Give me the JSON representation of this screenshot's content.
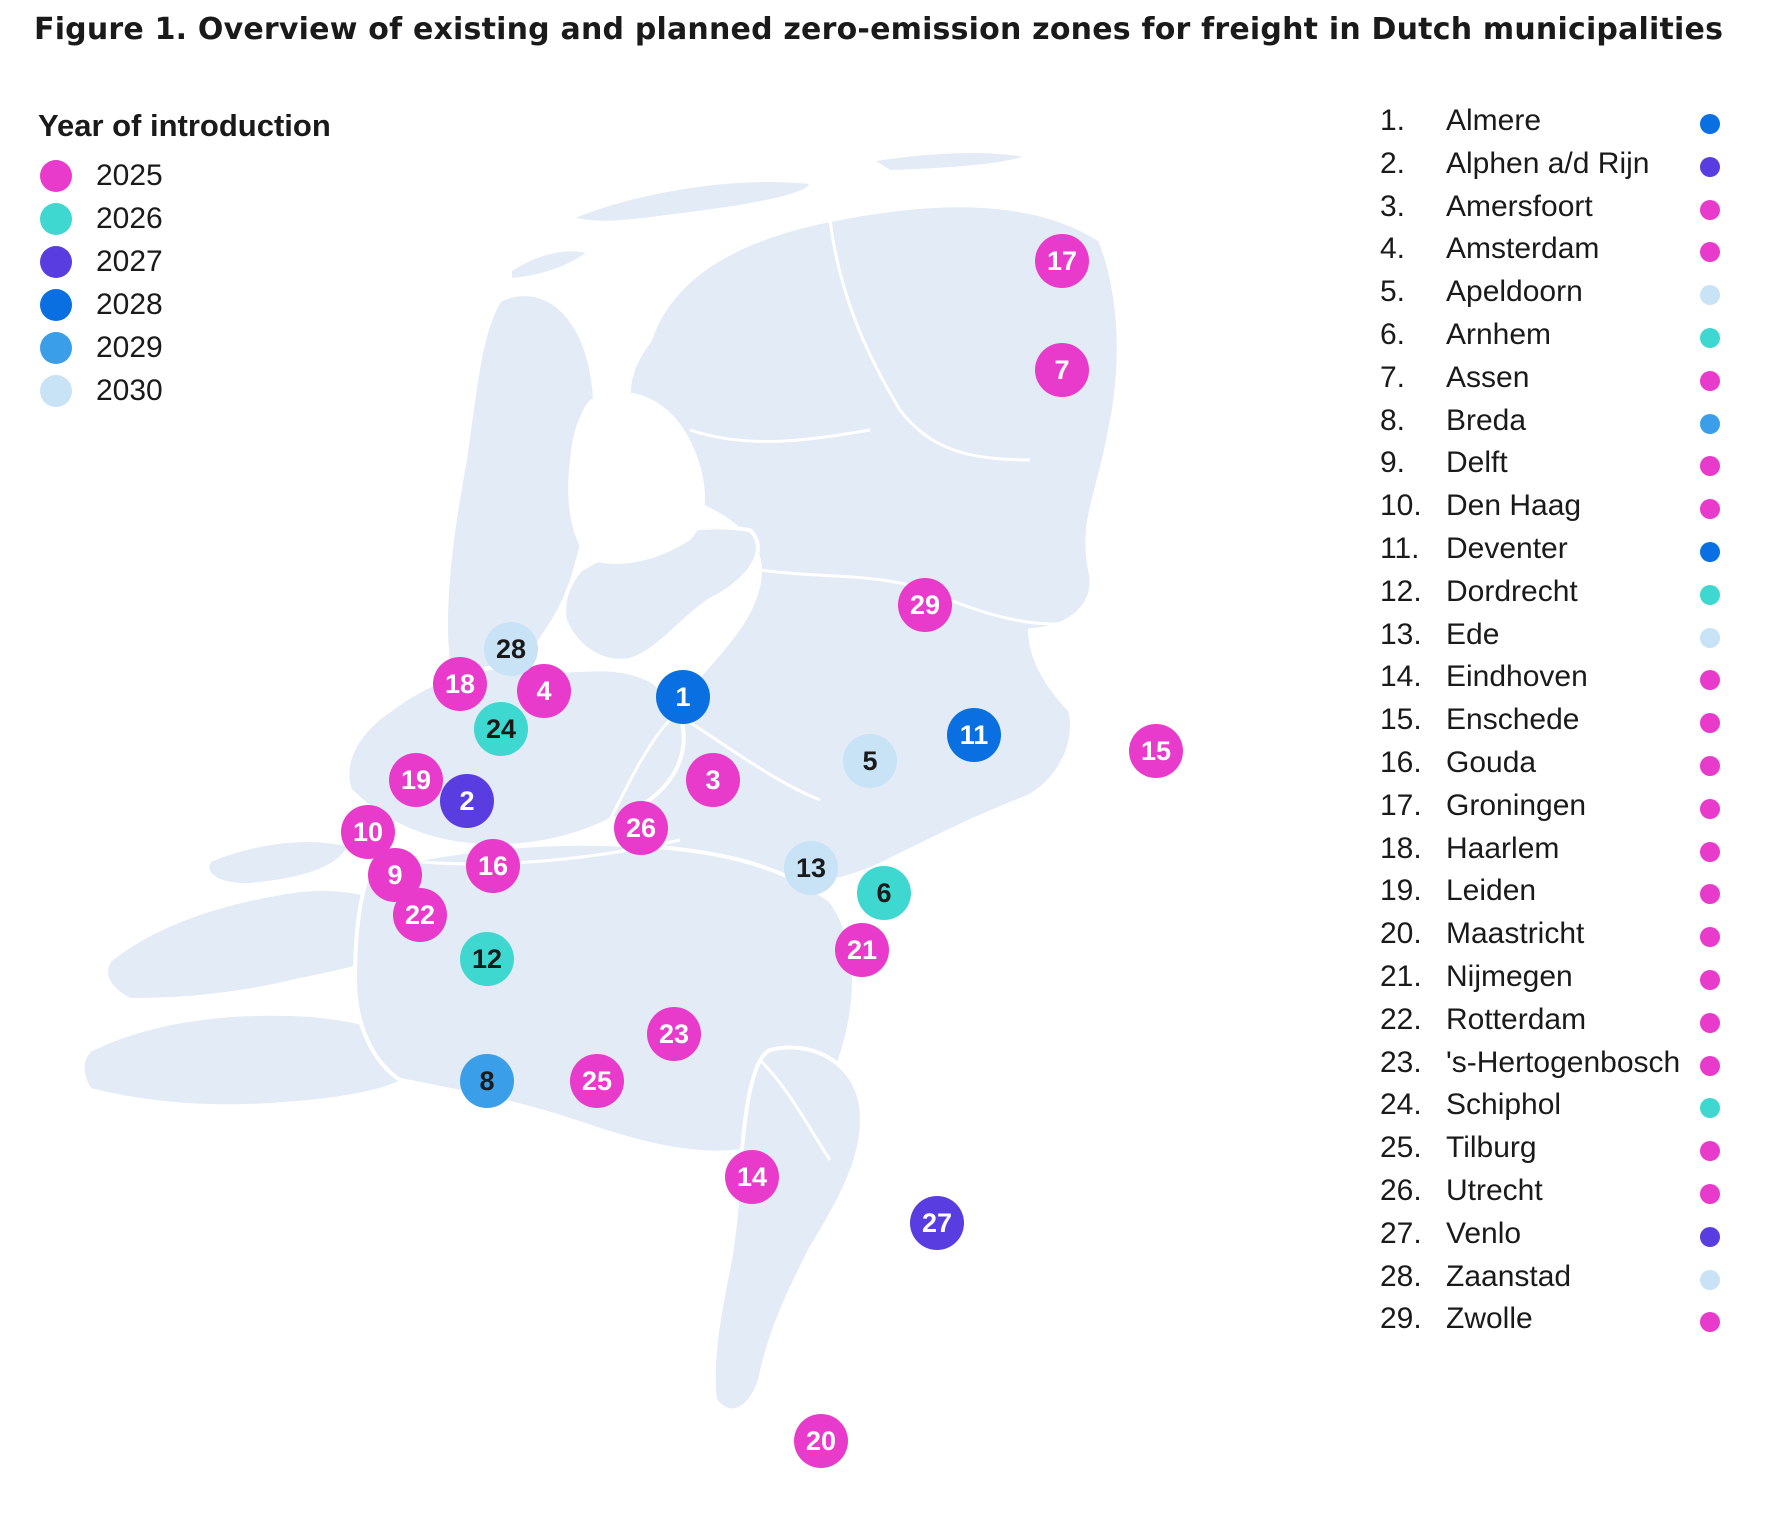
{
  "title": "Figure 1. Overview of existing and planned zero-emission zones for freight in Dutch municipalities",
  "legend": {
    "title": "Year of introduction",
    "items": [
      {
        "year": "2025",
        "color": "#e83bcc"
      },
      {
        "year": "2026",
        "color": "#3ed8d0"
      },
      {
        "year": "2027",
        "color": "#5a3de0"
      },
      {
        "year": "2028",
        "color": "#0a6fe0"
      },
      {
        "year": "2029",
        "color": "#3a9ee8"
      },
      {
        "year": "2030",
        "color": "#c8e2f6"
      }
    ]
  },
  "municipalities": [
    {
      "num": "1.",
      "id": "1",
      "name": "Almere",
      "year": "2028"
    },
    {
      "num": "2.",
      "id": "2",
      "name": "Alphen a/d Rijn",
      "year": "2027"
    },
    {
      "num": "3.",
      "id": "3",
      "name": "Amersfoort",
      "year": "2025"
    },
    {
      "num": "4.",
      "id": "4",
      "name": "Amsterdam",
      "year": "2025"
    },
    {
      "num": "5.",
      "id": "5",
      "name": "Apeldoorn",
      "year": "2030"
    },
    {
      "num": "6.",
      "id": "6",
      "name": "Arnhem",
      "year": "2026"
    },
    {
      "num": "7.",
      "id": "7",
      "name": "Assen",
      "year": "2025"
    },
    {
      "num": "8.",
      "id": "8",
      "name": "Breda",
      "year": "2029"
    },
    {
      "num": "9.",
      "id": "9",
      "name": "Delft",
      "year": "2025"
    },
    {
      "num": "10.",
      "id": "10",
      "name": "Den Haag",
      "year": "2025"
    },
    {
      "num": "11.",
      "id": "11",
      "name": "Deventer",
      "year": "2028"
    },
    {
      "num": "12.",
      "id": "12",
      "name": "Dordrecht",
      "year": "2026"
    },
    {
      "num": "13.",
      "id": "13",
      "name": "Ede",
      "year": "2030"
    },
    {
      "num": "14.",
      "id": "14",
      "name": "Eindhoven",
      "year": "2025"
    },
    {
      "num": "15.",
      "id": "15",
      "name": "Enschede",
      "year": "2025"
    },
    {
      "num": "16.",
      "id": "16",
      "name": "Gouda",
      "year": "2025"
    },
    {
      "num": "17.",
      "id": "17",
      "name": "Groningen",
      "year": "2025"
    },
    {
      "num": "18.",
      "id": "18",
      "name": "Haarlem",
      "year": "2025"
    },
    {
      "num": "19.",
      "id": "19",
      "name": "Leiden",
      "year": "2025"
    },
    {
      "num": "20.",
      "id": "20",
      "name": "Maastricht",
      "year": "2025"
    },
    {
      "num": "21.",
      "id": "21",
      "name": "Nijmegen",
      "year": "2025"
    },
    {
      "num": "22.",
      "id": "22",
      "name": "Rotterdam",
      "year": "2025"
    },
    {
      "num": "23.",
      "id": "23",
      "name": "'s-Hertogenbosch",
      "year": "2025"
    },
    {
      "num": "24.",
      "id": "24",
      "name": "Schiphol",
      "year": "2026"
    },
    {
      "num": "25.",
      "id": "25",
      "name": "Tilburg",
      "year": "2025"
    },
    {
      "num": "26.",
      "id": "26",
      "name": "Utrecht",
      "year": "2025"
    },
    {
      "num": "27.",
      "id": "27",
      "name": "Venlo",
      "year": "2027"
    },
    {
      "num": "28.",
      "id": "28",
      "name": "Zaanstad",
      "year": "2030"
    },
    {
      "num": "29.",
      "id": "29",
      "name": "Zwolle",
      "year": "2025"
    }
  ]
}
